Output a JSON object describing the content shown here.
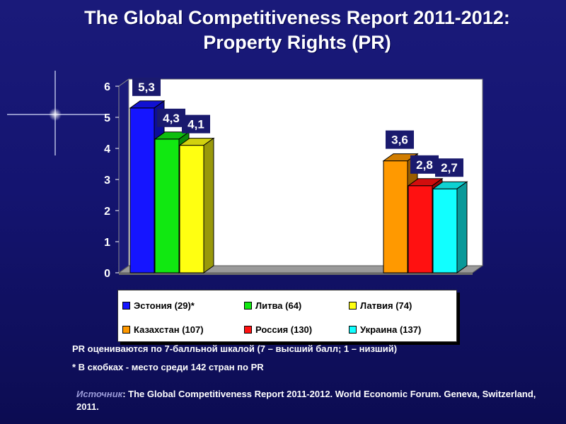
{
  "title": {
    "line1": "The Global Competitiveness Report 2011-2012:",
    "line2": "Property Rights (PR)"
  },
  "chart_data": {
    "type": "bar",
    "title": "",
    "xlabel": "",
    "ylabel": "",
    "ylim": [
      0,
      6
    ],
    "yticks": [
      "0",
      "1",
      "2",
      "3",
      "4",
      "5",
      "6"
    ],
    "groups": [
      {
        "bars": [
          {
            "name": "Эстония (29)*",
            "value": 5.3,
            "label": "5,3",
            "color": "#1515ff"
          },
          {
            "name": "Литва (64)",
            "value": 4.3,
            "label": "4,3",
            "color": "#11e811"
          },
          {
            "name": "Латвия (74)",
            "value": 4.1,
            "label": "4,1",
            "color": "#ffff11"
          }
        ]
      },
      {
        "bars": [
          {
            "name": "Казахстан (107)",
            "value": 3.6,
            "label": "3,6",
            "color": "#ff9900"
          },
          {
            "name": "Россия (130)",
            "value": 2.8,
            "label": "2,8",
            "color": "#ff1111"
          },
          {
            "name": "Украина (137)",
            "value": 2.7,
            "label": "2,7",
            "color": "#11ffff"
          }
        ]
      }
    ],
    "legend": [
      {
        "label": "Эстония (29)*",
        "color": "#1515ff"
      },
      {
        "label": "Литва (64)",
        "color": "#11e811"
      },
      {
        "label": "Латвия (74)",
        "color": "#ffff11"
      },
      {
        "label": "Казахстан (107)",
        "color": "#ff9900"
      },
      {
        "label": "Россия (130)",
        "color": "#ff1111"
      },
      {
        "label": "Украина (137)",
        "color": "#11ffff"
      }
    ],
    "legend_placement": "bottom",
    "grid": false
  },
  "notes": {
    "scale": "PR оцениваются по 7-балльной шкалой (7 – высший балл; 1 – низший)",
    "rank": "* В скобках - место среди 142 стран по PR"
  },
  "source": {
    "label": "Источник",
    "text": ": The Global Competitiveness Report 2011-2012. World Economic Forum. Geneva, Switzerland, 2011."
  }
}
